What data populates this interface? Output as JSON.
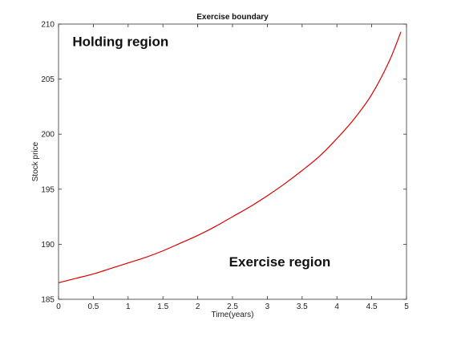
{
  "chart_data": {
    "type": "line",
    "title": "Exercise boundary",
    "xlabel": "Time(years)",
    "ylabel": "Stock price",
    "xlim": [
      0,
      5
    ],
    "ylim": [
      185,
      210
    ],
    "xticks": [
      "0",
      "0.5",
      "1",
      "1.5",
      "2",
      "2.5",
      "3",
      "3.5",
      "4",
      "4.5",
      "5"
    ],
    "yticks": [
      "185",
      "190",
      "195",
      "200",
      "205",
      "210"
    ],
    "grid": false,
    "legend": "none",
    "series_color": "#dd0000",
    "series": [
      {
        "x": [
          0,
          0.25,
          0.5,
          0.75,
          1,
          1.25,
          1.5,
          1.75,
          2,
          2.25,
          2.5,
          2.75,
          3,
          3.25,
          3.5,
          3.75,
          4,
          4.25,
          4.5,
          4.75,
          4.92
        ],
        "y": [
          186.5,
          186.9,
          187.3,
          187.8,
          188.3,
          188.8,
          189.4,
          190.1,
          190.8,
          191.6,
          192.5,
          193.4,
          194.4,
          195.5,
          196.7,
          198.0,
          199.6,
          201.4,
          203.6,
          206.6,
          209.3
        ]
      }
    ],
    "annotations": [
      {
        "text": "Holding region",
        "x": 0.2,
        "y": 208.0
      },
      {
        "text": "Exercise region",
        "x": 2.45,
        "y": 188.0
      }
    ]
  }
}
